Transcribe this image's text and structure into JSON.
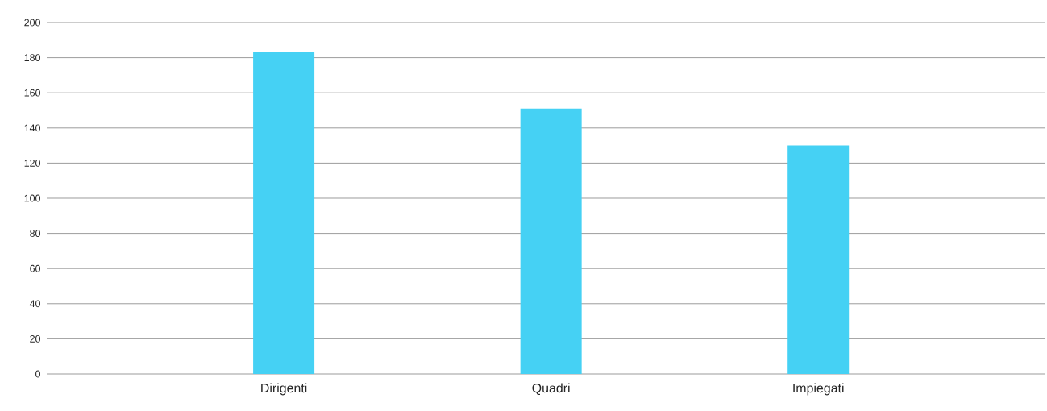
{
  "chart_data": {
    "type": "bar",
    "categories": [
      "Dirigenti",
      "Quadri",
      "Impiegati"
    ],
    "values": [
      183,
      151,
      130
    ],
    "color": "#45d1f4",
    "ylim": [
      0,
      200
    ],
    "yticks": [
      0,
      20,
      40,
      60,
      80,
      100,
      120,
      140,
      160,
      180,
      200
    ],
    "grid": "y"
  }
}
